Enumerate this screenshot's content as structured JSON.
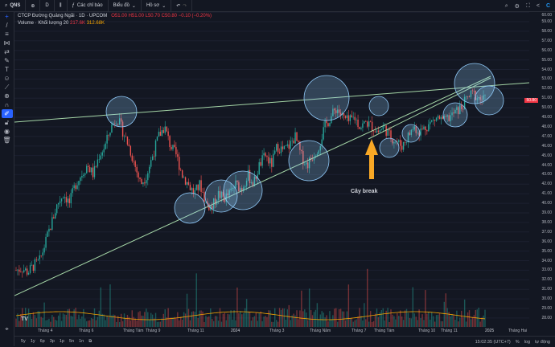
{
  "topbar": {
    "symbol": "QNS",
    "interval": "D",
    "indicators": "Các chỉ báo",
    "charts": "Biểu đồ",
    "profile": "Hồ sơ"
  },
  "legend": {
    "title": "CTCP Đường Quảng Ngãi · 1D · UPCOM",
    "o": "O51.00",
    "h": "H51.00",
    "l": "L50.70",
    "c": "C50.80",
    "chg": "−0.10 (−0.20%)",
    "volume_label": "Volume · Khối lượng 20",
    "vol1": "217.6K",
    "vol2": "312.68K"
  },
  "price_axis": {
    "ticks": [
      "60.00",
      "59.00",
      "58.00",
      "57.00",
      "56.00",
      "55.00",
      "54.00",
      "53.00",
      "52.00",
      "51.00",
      "50.00",
      "49.00",
      "48.00",
      "47.00",
      "46.00",
      "45.00",
      "44.00",
      "43.00",
      "42.00",
      "41.00",
      "40.00",
      "39.00",
      "38.00",
      "37.00",
      "36.00",
      "35.00",
      "34.00",
      "33.00",
      "32.00",
      "31.00",
      "30.00",
      "29.00",
      "28.00"
    ],
    "last_price": "50.80",
    "last_color": "#f23645"
  },
  "time_axis": [
    "Tháng 4",
    "Tháng 6",
    "Tháng Tám",
    "Tháng 9",
    "Tháng 11",
    "2024",
    "Tháng 3",
    "Tháng Năm",
    "Tháng 7",
    "Tháng Tám",
    "Tháng 10",
    "Tháng 11",
    "2025",
    "Tháng Hai"
  ],
  "bottom": {
    "ranges": [
      "5y",
      "1y",
      "6p",
      "3p",
      "1p",
      "5n",
      "1n"
    ],
    "time": "15:02:35 (UTC+7)",
    "pct": "%",
    "log": "log",
    "auto": "tự động"
  },
  "annotation": "Cây break",
  "colors": {
    "up": "#26a69a",
    "down": "#ef5350",
    "trend": "#a5d6a7",
    "circle": "#90caf9",
    "arrow": "#f9a825",
    "vol_ma": "#f7a600"
  },
  "closes": [
    33,
    33.2,
    32.8,
    33.5,
    34,
    36,
    38,
    40,
    41,
    40,
    42,
    43,
    44,
    43,
    45,
    46,
    48,
    49,
    47.5,
    46,
    44,
    42,
    43,
    45,
    47,
    48,
    46,
    45,
    43,
    42,
    41,
    42,
    40,
    39.5,
    41,
    40.5,
    41,
    42,
    41.5,
    43,
    42,
    44,
    45,
    44,
    46,
    45.5,
    46,
    47,
    45,
    44,
    45,
    46,
    48,
    49,
    50,
    49,
    48.5,
    49,
    48,
    48.5,
    48,
    47.5,
    48,
    47,
    46.5,
    46,
    47,
    48,
    47.5,
    48,
    48.5,
    49,
    48.5,
    49,
    49.5,
    50,
    51,
    51.5,
    51,
    50.8
  ]
}
